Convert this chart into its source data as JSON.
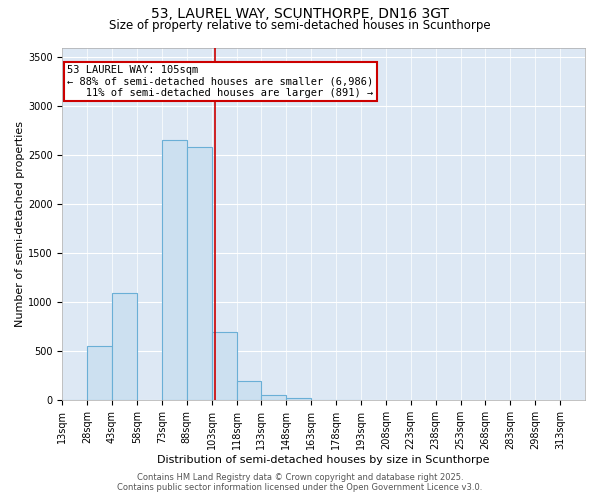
{
  "title": "53, LAUREL WAY, SCUNTHORPE, DN16 3GT",
  "subtitle": "Size of property relative to semi-detached houses in Scunthorpe",
  "xlabel": "Distribution of semi-detached houses by size in Scunthorpe",
  "ylabel": "Number of semi-detached properties",
  "property_label": "53 LAUREL WAY: 105sqm",
  "pct_smaller": "88% of semi-detached houses are smaller (6,986)",
  "pct_larger": "11% of semi-detached houses are larger (891)",
  "bin_labels": [
    "13sqm",
    "28sqm",
    "43sqm",
    "58sqm",
    "73sqm",
    "88sqm",
    "103sqm",
    "118sqm",
    "133sqm",
    "148sqm",
    "163sqm",
    "178sqm",
    "193sqm",
    "208sqm",
    "223sqm",
    "238sqm",
    "253sqm",
    "268sqm",
    "283sqm",
    "298sqm",
    "313sqm"
  ],
  "bin_edges": [
    13,
    28,
    43,
    58,
    73,
    88,
    103,
    118,
    133,
    148,
    163,
    178,
    193,
    208,
    223,
    238,
    253,
    268,
    283,
    298,
    313
  ],
  "bar_heights": [
    2,
    555,
    1100,
    0,
    2660,
    2580,
    700,
    195,
    55,
    25,
    5,
    2,
    0,
    0,
    0,
    0,
    0,
    0,
    0,
    0,
    0
  ],
  "bar_color": "#cce0f0",
  "bar_edge_color": "#6aafd6",
  "vline_color": "#cc0000",
  "vline_x": 105,
  "annotation_box_color": "#cc0000",
  "background_color": "#dde8f4",
  "ylim": [
    0,
    3600
  ],
  "yticks": [
    0,
    500,
    1000,
    1500,
    2000,
    2500,
    3000,
    3500
  ],
  "footer_line1": "Contains HM Land Registry data © Crown copyright and database right 2025.",
  "footer_line2": "Contains public sector information licensed under the Open Government Licence v3.0.",
  "title_fontsize": 10,
  "subtitle_fontsize": 8.5,
  "annotation_fontsize": 7.5,
  "axis_label_fontsize": 8,
  "tick_fontsize": 7,
  "footer_fontsize": 6
}
